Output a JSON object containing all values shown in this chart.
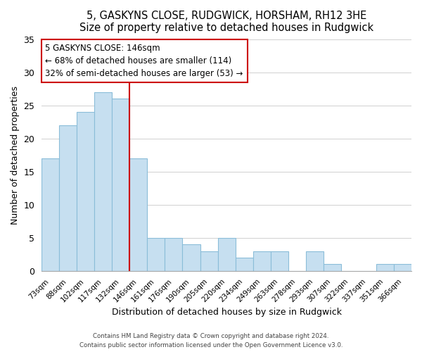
{
  "title": "5, GASKYNS CLOSE, RUDGWICK, HORSHAM, RH12 3HE",
  "subtitle": "Size of property relative to detached houses in Rudgwick",
  "xlabel": "Distribution of detached houses by size in Rudgwick",
  "ylabel": "Number of detached properties",
  "bar_labels": [
    "73sqm",
    "88sqm",
    "102sqm",
    "117sqm",
    "132sqm",
    "146sqm",
    "161sqm",
    "176sqm",
    "190sqm",
    "205sqm",
    "220sqm",
    "234sqm",
    "249sqm",
    "263sqm",
    "278sqm",
    "293sqm",
    "307sqm",
    "322sqm",
    "337sqm",
    "351sqm",
    "366sqm"
  ],
  "bar_values": [
    17,
    22,
    24,
    27,
    26,
    17,
    5,
    5,
    4,
    3,
    5,
    2,
    3,
    3,
    0,
    3,
    1,
    0,
    0,
    1,
    1
  ],
  "bar_color": "#c6dff0",
  "bar_edge_color": "#8bbdd9",
  "vline_x": 5,
  "vline_color": "#cc0000",
  "annotation_title": "5 GASKYNS CLOSE: 146sqm",
  "annotation_line1": "← 68% of detached houses are smaller (114)",
  "annotation_line2": "32% of semi-detached houses are larger (53) →",
  "annotation_box_color": "#ffffff",
  "annotation_box_edgecolor": "#cc0000",
  "ylim": [
    0,
    35
  ],
  "yticks": [
    0,
    5,
    10,
    15,
    20,
    25,
    30,
    35
  ],
  "footer1": "Contains HM Land Registry data © Crown copyright and database right 2024.",
  "footer2": "Contains public sector information licensed under the Open Government Licence v3.0."
}
